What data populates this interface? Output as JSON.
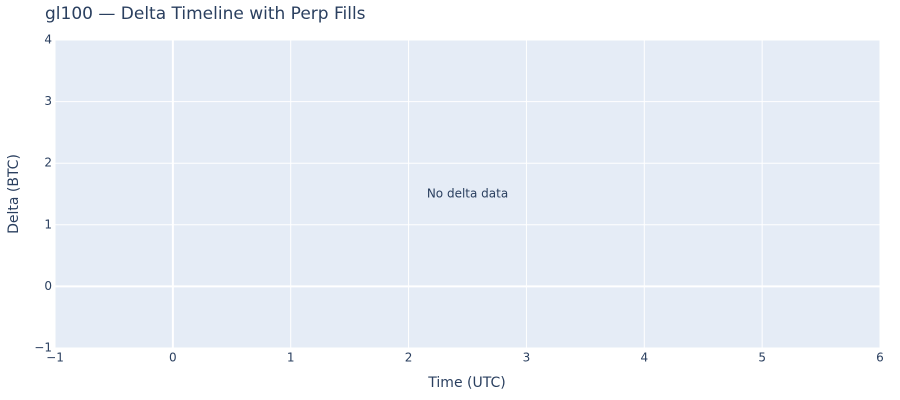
{
  "chart_data": {
    "type": "line",
    "title": "gl100 — Delta Timeline with Perp Fills",
    "xlabel": "Time (UTC)",
    "ylabel": "Delta (BTC)",
    "annotation": "No delta data",
    "xlim": [
      -1,
      6
    ],
    "xticks": [
      {
        "value": -1,
        "label": "−1"
      },
      0,
      1,
      2,
      3,
      4,
      5,
      6
    ],
    "ylim": [
      -1,
      4
    ],
    "yticks": [
      {
        "value": -1,
        "label": "−1"
      },
      0,
      1,
      2,
      3,
      4
    ],
    "grid": true
  }
}
